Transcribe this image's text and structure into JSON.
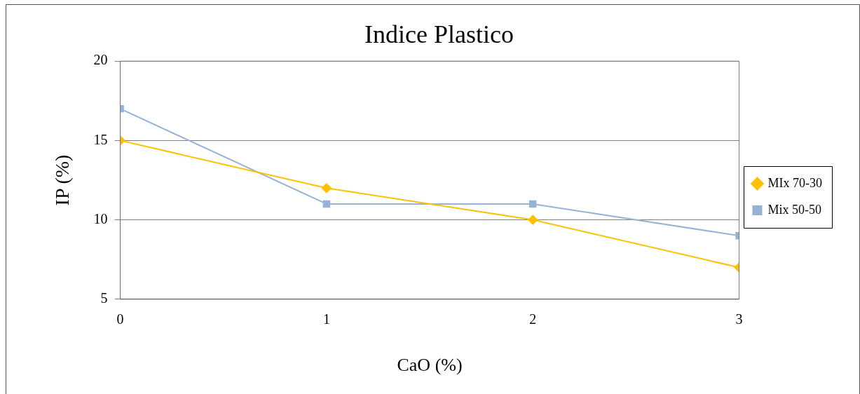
{
  "chart_data": {
    "type": "line",
    "title": "Indice Plastico",
    "xlabel": "CaO (%)",
    "ylabel": "IP (%)",
    "x": [
      0,
      1,
      2,
      3
    ],
    "xlim": [
      0,
      3
    ],
    "xticks": [
      0,
      1,
      2,
      3
    ],
    "ylim": [
      5,
      20
    ],
    "yticks": [
      5,
      10,
      15,
      20
    ],
    "grid": "y",
    "legend": "right",
    "series": [
      {
        "name": "MIx 70-30",
        "color": "#ffc000",
        "marker": "diamond",
        "values": [
          15,
          12,
          10,
          7
        ]
      },
      {
        "name": "Mix 50-50",
        "color": "#95b3d7",
        "marker": "square",
        "values": [
          17,
          11,
          11,
          9
        ]
      }
    ]
  }
}
